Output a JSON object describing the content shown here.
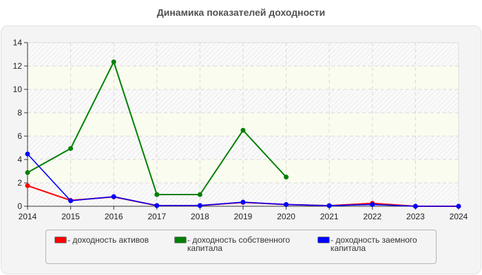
{
  "title": "Динамика показателей доходности",
  "legend": [
    {
      "label": "- доходность активов",
      "color": "#ff0000"
    },
    {
      "label": "- доходность собственного капитала",
      "color": "#008000"
    },
    {
      "label": "- доходность заемного капитала",
      "color": "#0000ff"
    }
  ],
  "chart_data": {
    "type": "line",
    "title": "Динамика показателей доходности",
    "xlabel": "",
    "ylabel": "",
    "x": [
      2014,
      2015,
      2016,
      2017,
      2018,
      2019,
      2020,
      2021,
      2022,
      2023,
      2024
    ],
    "ylim": [
      0,
      14
    ],
    "yticks": [
      0,
      2,
      4,
      6,
      8,
      10,
      12,
      14
    ],
    "grid": true,
    "legend_position": "bottom",
    "series": [
      {
        "name": "доходность активов",
        "color": "#ff0000",
        "values": [
          1.76,
          0.5,
          0.8,
          0.06,
          0.06,
          0.33,
          0.15,
          0.05,
          0.25,
          0.0,
          0.0
        ]
      },
      {
        "name": "доходность собственного капитала",
        "color": "#008000",
        "values": [
          2.88,
          4.94,
          12.35,
          1.0,
          1.0,
          6.5,
          2.5,
          null,
          null,
          null,
          null
        ]
      },
      {
        "name": "доходность заемного капитала",
        "color": "#0000ff",
        "values": [
          4.47,
          0.47,
          0.82,
          0.06,
          0.06,
          0.35,
          0.15,
          0.05,
          0.15,
          0.0,
          0.0
        ]
      }
    ]
  }
}
